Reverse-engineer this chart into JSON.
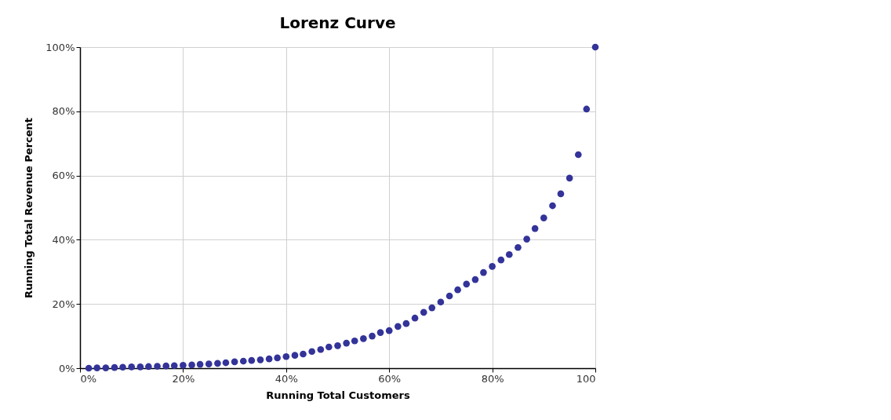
{
  "chart_data": {
    "type": "scatter",
    "title": "Lorenz Curve",
    "xlabel": "Running Total Customers",
    "ylabel": "Running Total Revenue Percent",
    "x": [
      1.7,
      3.3,
      5,
      6.7,
      8.3,
      10,
      11.7,
      13.3,
      15,
      16.7,
      18.3,
      20,
      21.7,
      23.3,
      25,
      26.7,
      28.3,
      30,
      31.7,
      33.3,
      35,
      36.7,
      38.3,
      40,
      41.7,
      43.3,
      45,
      46.7,
      48.3,
      50,
      51.7,
      53.3,
      55,
      56.7,
      58.3,
      60,
      61.7,
      63.3,
      65,
      66.7,
      68.3,
      70,
      71.7,
      73.3,
      75,
      76.7,
      78.3,
      80,
      81.7,
      83.3,
      85,
      86.7,
      88.3,
      90,
      91.7,
      93.3,
      95,
      96.7,
      98.3,
      100
    ],
    "series": [
      {
        "color": "#333399",
        "values": [
          0.0,
          0.1,
          0.1,
          0.2,
          0.3,
          0.4,
          0.4,
          0.5,
          0.6,
          0.7,
          0.8,
          0.9,
          1.0,
          1.2,
          1.3,
          1.5,
          1.7,
          2.0,
          2.2,
          2.4,
          2.6,
          2.9,
          3.2,
          3.6,
          4.0,
          4.4,
          5.2,
          5.8,
          6.6,
          7.0,
          7.8,
          8.5,
          9.2,
          10.0,
          11.1,
          11.7,
          13.0,
          13.9,
          15.6,
          17.4,
          18.8,
          20.6,
          22.5,
          24.4,
          26.2,
          27.6,
          29.8,
          31.7,
          33.7,
          35.4,
          37.6,
          40.2,
          43.5,
          46.8,
          50.6,
          54.3,
          59.2,
          66.5,
          80.7,
          100
        ]
      }
    ],
    "xlim": [
      0,
      100
    ],
    "ylim": [
      0,
      100
    ],
    "xticks": [
      {
        "value": 0,
        "label": "0%"
      },
      {
        "value": 20,
        "label": "20%"
      },
      {
        "value": 40,
        "label": "40%"
      },
      {
        "value": 60,
        "label": "60%"
      },
      {
        "value": 80,
        "label": "80%"
      },
      100
    ],
    "yticks": [
      {
        "value": 0,
        "label": "0%"
      },
      {
        "value": 20,
        "label": "20%"
      },
      {
        "value": 40,
        "label": "40%"
      },
      {
        "value": 60,
        "label": "60%"
      },
      {
        "value": 80,
        "label": "80%"
      },
      {
        "value": 100,
        "label": "100%"
      }
    ],
    "grid": true,
    "marker": "circle"
  }
}
